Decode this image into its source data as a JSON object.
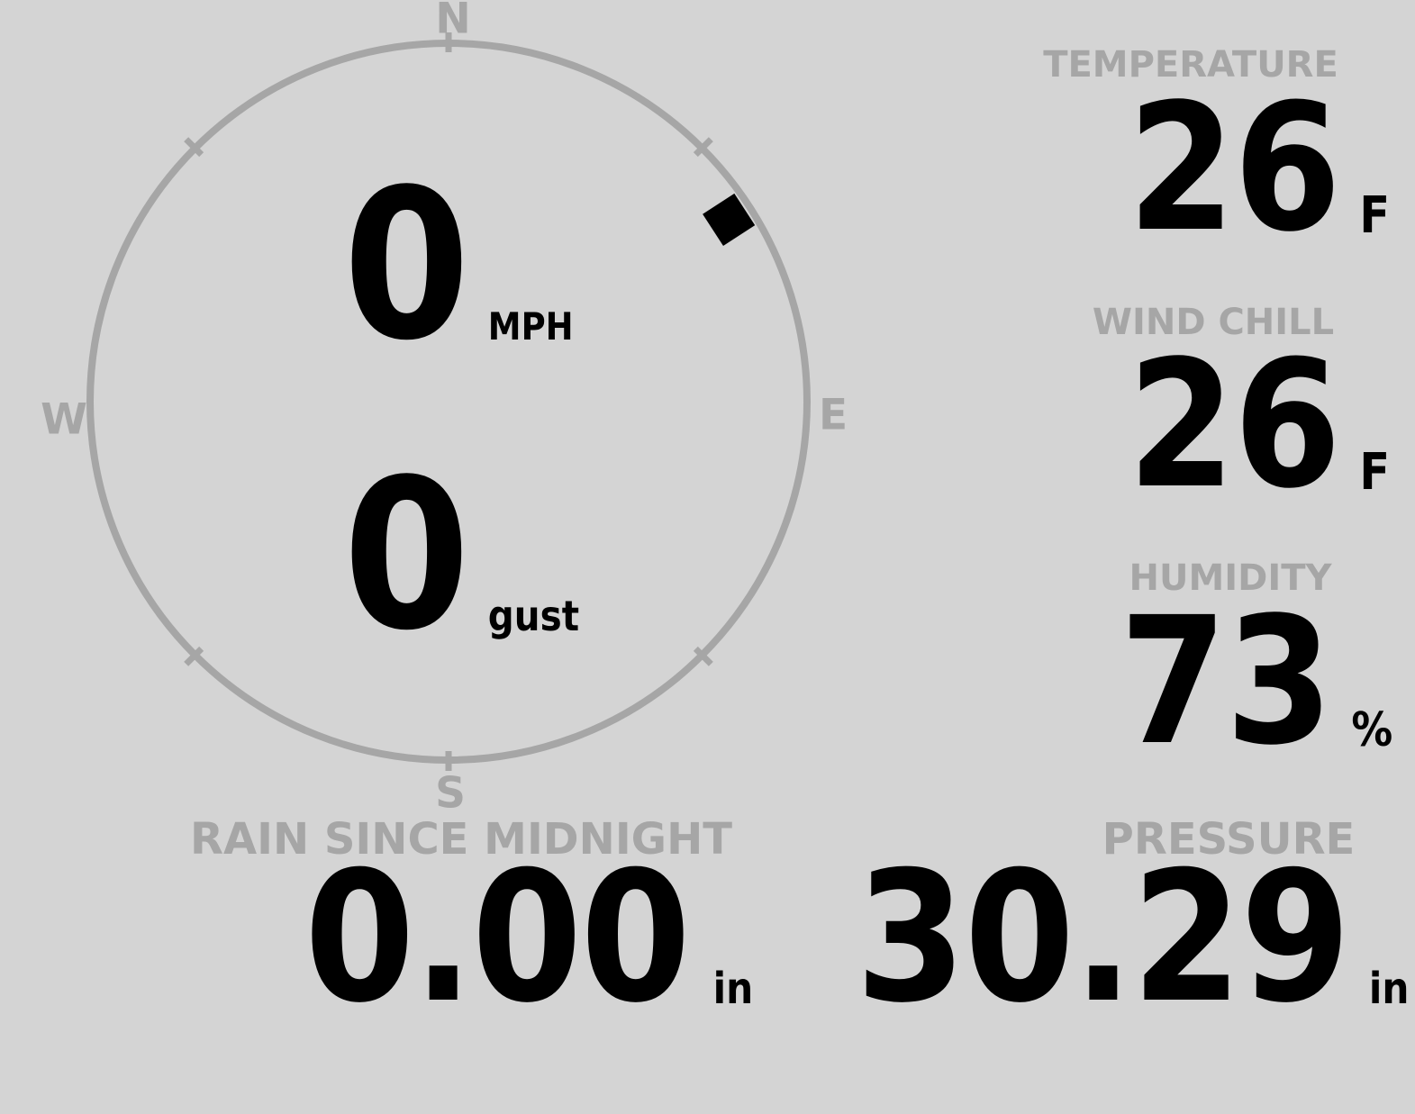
{
  "display": {
    "background_color": "#d4d4d4",
    "muted_color": "#a6a6a6",
    "value_color": "#000000"
  },
  "compass": {
    "cardinals": {
      "north": "N",
      "east": "E",
      "south": "S",
      "west": "W"
    },
    "wind_direction_deg": 57,
    "speed": {
      "value": "0",
      "unit": "MPH"
    },
    "gust": {
      "value": "0",
      "unit": "gust"
    }
  },
  "metrics": {
    "temperature": {
      "label": "TEMPERATURE",
      "value": "26",
      "unit": "F"
    },
    "wind_chill": {
      "label": "WIND CHILL",
      "value": "26",
      "unit": "F"
    },
    "humidity": {
      "label": "HUMIDITY",
      "value": "73",
      "unit": "%"
    },
    "rain_since_midnight": {
      "label": "RAIN SINCE MIDNIGHT",
      "value": "0.00",
      "unit": "in"
    },
    "pressure": {
      "label": "PRESSURE",
      "value": "30.29",
      "unit": "in"
    }
  }
}
